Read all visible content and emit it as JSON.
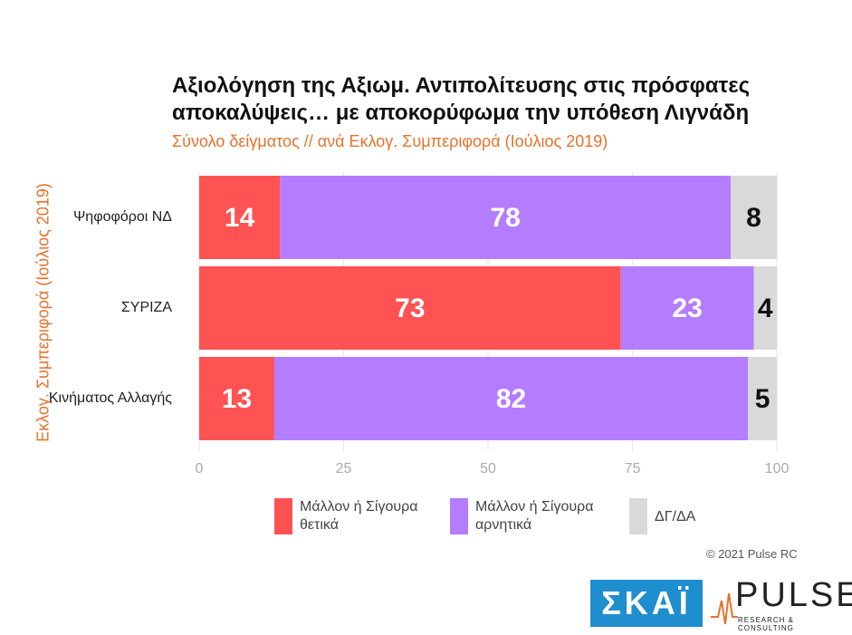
{
  "chart_data": {
    "type": "stacked-barh",
    "title": "Αξιολόγηση της Αξιωμ. Αντιπολίτευσης στις πρόσφατες αποκαλύψεις… με αποκορύφωμα την υπόθεση Λιγνάδη",
    "subtitle": "Σύνολο δείγματος // ανά Εκλογ. Συμπεριφορά (Ιούλιος 2019)",
    "y_label": "Εκλογ. Συμπεριφορά (Ιούλιος 2019)",
    "categories": [
      "Ψηφοφόροι ΝΔ",
      "ΣΥΡΙΖΑ",
      "Κινήματος Αλλαγής"
    ],
    "series": [
      {
        "name": "Μάλλον ή Σίγουρα θετικά",
        "color": "#ff5252",
        "label_color": "#ffffff",
        "values": [
          14,
          73,
          13
        ]
      },
      {
        "name": "Μάλλον ή Σίγουρα αρνητικά",
        "color": "#b47cff",
        "label_color": "#ffffff",
        "values": [
          78,
          23,
          82
        ]
      },
      {
        "name": "ΔΓ/ΔΑ",
        "color": "#d9d9d9",
        "label_color": "#111111",
        "values": [
          8,
          4,
          5
        ]
      }
    ],
    "xlim": [
      0,
      100
    ],
    "xticks": [
      0,
      25,
      50,
      75,
      100
    ],
    "grid": true,
    "copyright": "© 2021 Pulse RC"
  },
  "logos": {
    "skai": "ΣΚΑΪ",
    "pulse": "PULSE",
    "pulse_sub": "RESEARCH & CONSULTING"
  }
}
